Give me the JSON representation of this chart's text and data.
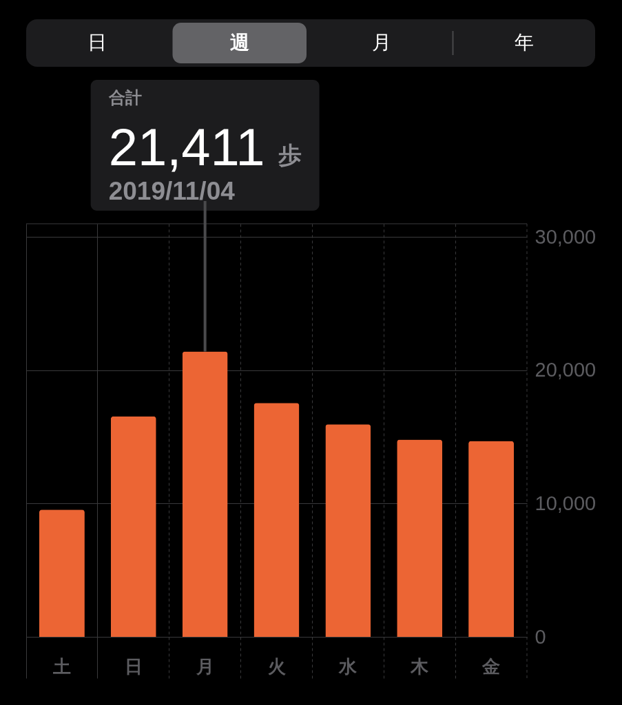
{
  "chart_data": {
    "type": "bar",
    "categories": [
      "土",
      "日",
      "月",
      "火",
      "水",
      "木",
      "金"
    ],
    "values": [
      9550,
      16550,
      21411,
      17550,
      15950,
      14800,
      14700
    ],
    "color": "#ec6534",
    "ylim": [
      0,
      31000
    ],
    "yticks": [
      {
        "value": 0,
        "label": "0"
      },
      {
        "value": 10000,
        "label": "10,000"
      },
      {
        "value": 20000,
        "label": "20,000"
      },
      {
        "value": 30000,
        "label": "30,000"
      }
    ],
    "grid": true,
    "annotations": [
      "日",
      "週",
      "月",
      "年",
      "合計",
      "21,411",
      "歩",
      {
        "text": "2019/11/04",
        "x": "月",
        "y": 21411
      }
    ]
  }
}
